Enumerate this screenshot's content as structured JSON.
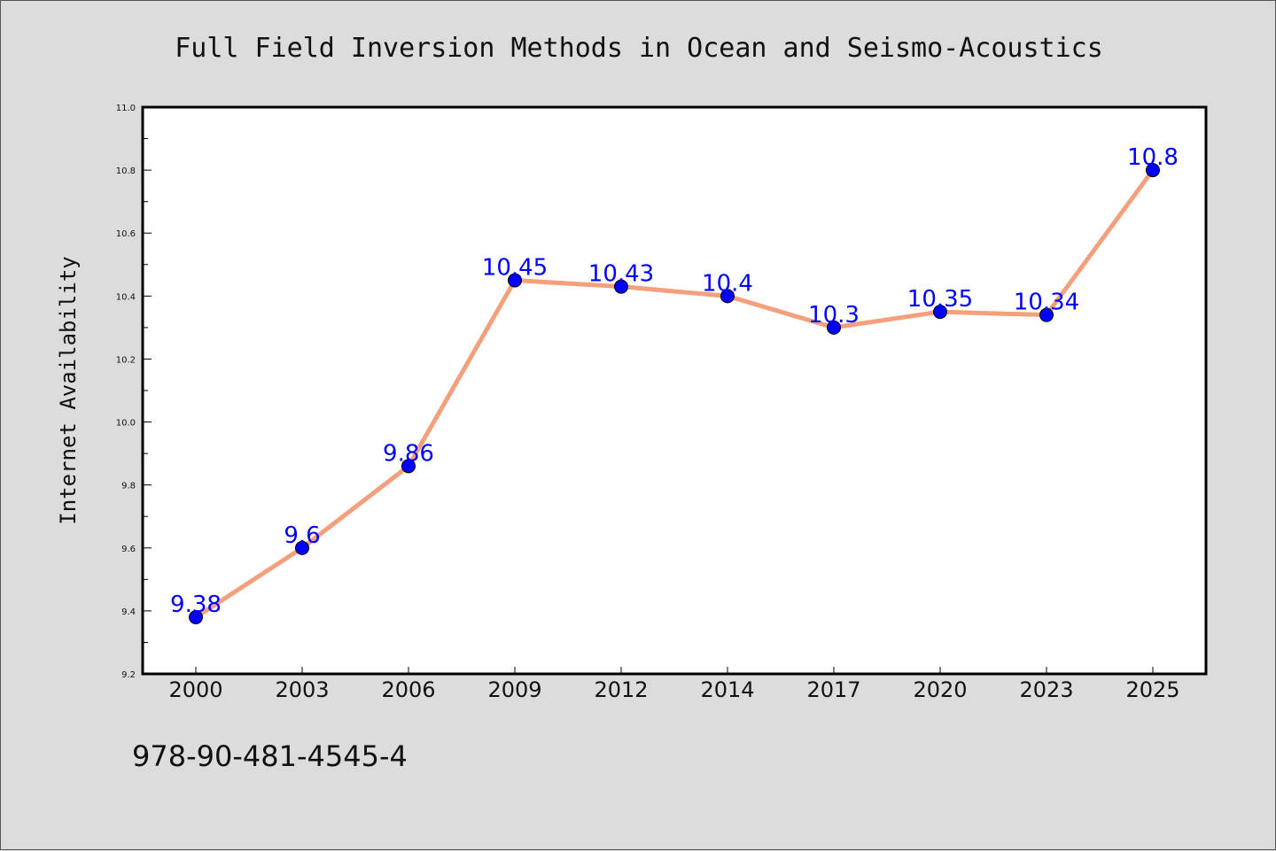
{
  "chart_data": {
    "type": "line",
    "title": "Full Field Inversion Methods in Ocean and Seismo-Acoustics",
    "xlabel": "",
    "ylabel": "Internet Availability",
    "categories": [
      "2000",
      "2003",
      "2006",
      "2009",
      "2012",
      "2014",
      "2017",
      "2020",
      "2023",
      "2025"
    ],
    "series": [
      {
        "values": [
          9.38,
          9.6,
          9.86,
          10.45,
          10.43,
          10.4,
          10.3,
          10.35,
          10.34,
          10.8
        ]
      }
    ],
    "data_labels": [
      "9.38",
      "9.6",
      "9.86",
      "10.45",
      "10.43",
      "10.4",
      "10.3",
      "10.35",
      "10.34",
      "10.8"
    ],
    "ylim": [
      9.2,
      11.0
    ],
    "yticks": [
      "9.2",
      "9.4",
      "9.6",
      "9.8",
      "10.0",
      "10.2",
      "10.4",
      "10.6",
      "10.8",
      "11.0"
    ],
    "grid": false,
    "legend": "none",
    "colors": {
      "line": "#f4a07c",
      "marker": "#0000ff",
      "label": "#0000ff",
      "plot_bg": "#ffffff",
      "page_bg": "#dcdcdc"
    }
  },
  "footnote": "978-90-481-4545-4"
}
